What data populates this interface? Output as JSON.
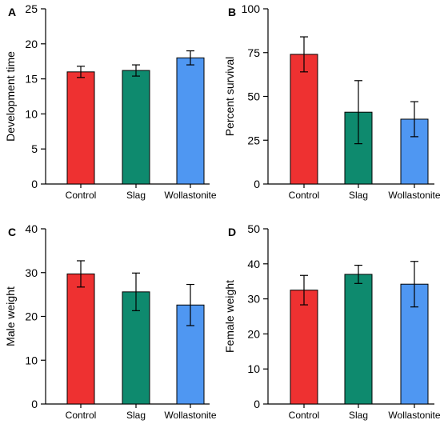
{
  "colors": {
    "Control": "#ee3131",
    "Slag": "#0e8a6e",
    "Wollastonite": "#4f97f2"
  },
  "chart_data": [
    {
      "type": "bar",
      "panel": "A",
      "ylabel": "Development time",
      "ylim": [
        0,
        25
      ],
      "yticks": [
        0,
        5,
        10,
        15,
        20,
        25
      ],
      "categories": [
        "Control",
        "Slag",
        "Wollastonite"
      ],
      "values": [
        16.0,
        16.2,
        18.0
      ],
      "errors": [
        0.8,
        0.8,
        1.0
      ]
    },
    {
      "type": "bar",
      "panel": "B",
      "ylabel": "Percent survival",
      "ylim": [
        0,
        100
      ],
      "yticks": [
        0,
        25,
        50,
        75,
        100
      ],
      "categories": [
        "Control",
        "Slag",
        "Wollastonite"
      ],
      "values": [
        74,
        41,
        37
      ],
      "errors": [
        10,
        18,
        10
      ]
    },
    {
      "type": "bar",
      "panel": "C",
      "ylabel": "Male weight",
      "ylim": [
        0,
        40
      ],
      "yticks": [
        0,
        10,
        20,
        30,
        40
      ],
      "categories": [
        "Control",
        "Slag",
        "Wollastonite"
      ],
      "values": [
        29.7,
        25.6,
        22.6
      ],
      "errors": [
        3.0,
        4.3,
        4.7
      ]
    },
    {
      "type": "bar",
      "panel": "D",
      "ylabel": "Female weight",
      "ylim": [
        0,
        50
      ],
      "yticks": [
        0,
        10,
        20,
        30,
        40,
        50
      ],
      "categories": [
        "Control",
        "Slag",
        "Wollastonite"
      ],
      "values": [
        32.5,
        37.0,
        34.2
      ],
      "errors": [
        4.2,
        2.6,
        6.5
      ]
    }
  ]
}
